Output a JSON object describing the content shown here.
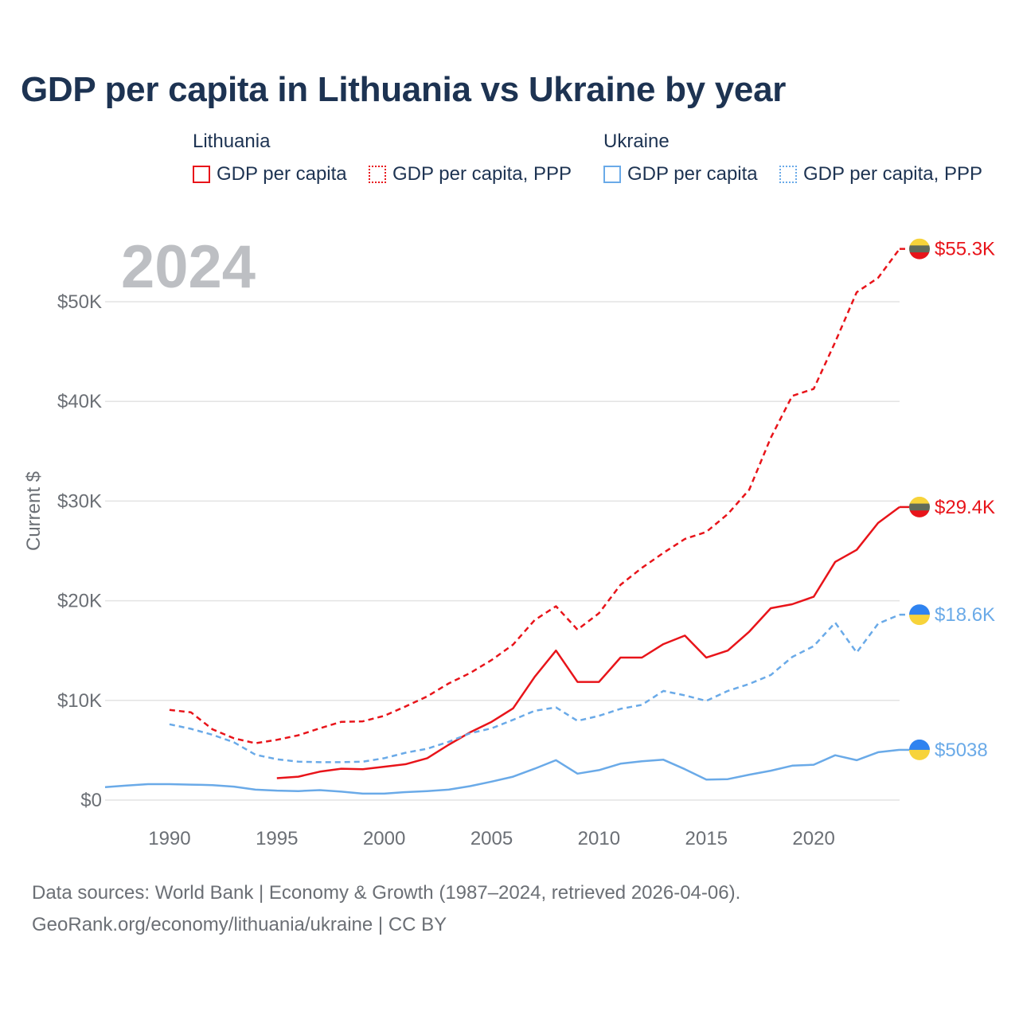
{
  "title": "GDP per capita in Lithuania vs Ukraine by year",
  "year_overlay": "2024",
  "legend": {
    "lithuania": {
      "title": "Lithuania",
      "gdp_label": "GDP per capita",
      "ppp_label": "GDP per capita, PPP"
    },
    "ukraine": {
      "title": "Ukraine",
      "gdp_label": "GDP per capita",
      "ppp_label": "GDP per capita, PPP"
    }
  },
  "footer": {
    "line1": "Data sources: World Bank | Economy & Growth (1987–2024, retrieved 2026-04-06).",
    "line2": "GeoRank.org/economy/lithuania/ukraine | CC BY"
  },
  "colors": {
    "lithuania": "#e8141a",
    "ukraine": "#6aaae8",
    "grid": "#e3e3e3",
    "axis_text": "#6b6f75",
    "title": "#1d3352",
    "flag_lt_yellow": "#f7d33a",
    "flag_lt_green": "#616b5a",
    "flag_lt_red": "#e8141a",
    "flag_ua_blue": "#2f83f0",
    "flag_ua_yellow": "#f7d33a"
  },
  "chart_data": {
    "type": "line",
    "title": "GDP per capita in Lithuania vs Ukraine by year",
    "xlabel": "",
    "ylabel": "Current $",
    "xlim": [
      1987,
      2024
    ],
    "ylim": [
      0,
      55300
    ],
    "x_ticks": [
      1990,
      1995,
      2000,
      2005,
      2010,
      2015,
      2020
    ],
    "y_ticks": [
      0,
      10000,
      20000,
      30000,
      40000,
      50000
    ],
    "y_tick_labels": [
      "$0",
      "$10K",
      "$20K",
      "$30K",
      "$40K",
      "$50K"
    ],
    "grid": true,
    "series": [
      {
        "name": "Lithuania GDP per capita",
        "country": "lithuania",
        "style": "solid",
        "end_label": "$29.4K",
        "points": [
          [
            1995,
            2200
          ],
          [
            1996,
            2350
          ],
          [
            1997,
            2850
          ],
          [
            1998,
            3150
          ],
          [
            1999,
            3100
          ],
          [
            2000,
            3350
          ],
          [
            2001,
            3600
          ],
          [
            2002,
            4200
          ],
          [
            2003,
            5550
          ],
          [
            2004,
            6800
          ],
          [
            2005,
            7850
          ],
          [
            2006,
            9200
          ],
          [
            2007,
            12350
          ],
          [
            2008,
            15000
          ],
          [
            2009,
            11850
          ],
          [
            2010,
            11850
          ],
          [
            2011,
            14300
          ],
          [
            2012,
            14300
          ],
          [
            2013,
            15650
          ],
          [
            2014,
            16500
          ],
          [
            2015,
            14300
          ],
          [
            2016,
            15000
          ],
          [
            2017,
            16900
          ],
          [
            2018,
            19250
          ],
          [
            2019,
            19650
          ],
          [
            2020,
            20400
          ],
          [
            2021,
            23900
          ],
          [
            2022,
            25100
          ],
          [
            2023,
            27800
          ],
          [
            2024,
            29400
          ]
        ]
      },
      {
        "name": "Lithuania GDP per capita, PPP",
        "country": "lithuania",
        "style": "dashed",
        "end_label": "$55.3K",
        "points": [
          [
            1990,
            9050
          ],
          [
            1991,
            8800
          ],
          [
            1992,
            7100
          ],
          [
            1993,
            6200
          ],
          [
            1994,
            5700
          ],
          [
            1995,
            6050
          ],
          [
            1996,
            6500
          ],
          [
            1997,
            7200
          ],
          [
            1998,
            7850
          ],
          [
            1999,
            7900
          ],
          [
            2000,
            8450
          ],
          [
            2001,
            9400
          ],
          [
            2002,
            10400
          ],
          [
            2003,
            11700
          ],
          [
            2004,
            12750
          ],
          [
            2005,
            14050
          ],
          [
            2006,
            15600
          ],
          [
            2007,
            18050
          ],
          [
            2008,
            19450
          ],
          [
            2009,
            17100
          ],
          [
            2010,
            18750
          ],
          [
            2011,
            21600
          ],
          [
            2012,
            23300
          ],
          [
            2013,
            24800
          ],
          [
            2014,
            26200
          ],
          [
            2015,
            26900
          ],
          [
            2016,
            28700
          ],
          [
            2017,
            31150
          ],
          [
            2018,
            36350
          ],
          [
            2019,
            40550
          ],
          [
            2020,
            41250
          ],
          [
            2021,
            45950
          ],
          [
            2022,
            50950
          ],
          [
            2023,
            52400
          ],
          [
            2024,
            55300
          ]
        ]
      },
      {
        "name": "Ukraine GDP per capita",
        "country": "ukraine",
        "style": "solid",
        "end_label": "$5038",
        "points": [
          [
            1987,
            1300
          ],
          [
            1988,
            1450
          ],
          [
            1989,
            1600
          ],
          [
            1990,
            1600
          ],
          [
            1991,
            1550
          ],
          [
            1992,
            1500
          ],
          [
            1993,
            1350
          ],
          [
            1994,
            1050
          ],
          [
            1995,
            950
          ],
          [
            1996,
            900
          ],
          [
            1997,
            1000
          ],
          [
            1998,
            850
          ],
          [
            1999,
            650
          ],
          [
            2000,
            650
          ],
          [
            2001,
            800
          ],
          [
            2002,
            900
          ],
          [
            2003,
            1050
          ],
          [
            2004,
            1400
          ],
          [
            2005,
            1850
          ],
          [
            2006,
            2350
          ],
          [
            2007,
            3150
          ],
          [
            2008,
            4000
          ],
          [
            2009,
            2650
          ],
          [
            2010,
            3000
          ],
          [
            2011,
            3650
          ],
          [
            2012,
            3900
          ],
          [
            2013,
            4050
          ],
          [
            2014,
            3100
          ],
          [
            2015,
            2050
          ],
          [
            2016,
            2100
          ],
          [
            2017,
            2550
          ],
          [
            2018,
            2950
          ],
          [
            2019,
            3450
          ],
          [
            2020,
            3550
          ],
          [
            2021,
            4500
          ],
          [
            2022,
            4000
          ],
          [
            2023,
            4800
          ],
          [
            2024,
            5038
          ]
        ]
      },
      {
        "name": "Ukraine GDP per capita, PPP",
        "country": "ukraine",
        "style": "dashed",
        "end_label": "$18.6K",
        "points": [
          [
            1990,
            7600
          ],
          [
            1991,
            7150
          ],
          [
            1992,
            6550
          ],
          [
            1993,
            5800
          ],
          [
            1994,
            4550
          ],
          [
            1995,
            4100
          ],
          [
            1996,
            3850
          ],
          [
            1997,
            3800
          ],
          [
            1998,
            3800
          ],
          [
            1999,
            3850
          ],
          [
            2000,
            4200
          ],
          [
            2001,
            4750
          ],
          [
            2002,
            5150
          ],
          [
            2003,
            5850
          ],
          [
            2004,
            6700
          ],
          [
            2005,
            7200
          ],
          [
            2006,
            8050
          ],
          [
            2007,
            8950
          ],
          [
            2008,
            9300
          ],
          [
            2009,
            7950
          ],
          [
            2010,
            8450
          ],
          [
            2011,
            9150
          ],
          [
            2012,
            9550
          ],
          [
            2013,
            10950
          ],
          [
            2014,
            10500
          ],
          [
            2015,
            9950
          ],
          [
            2016,
            10950
          ],
          [
            2017,
            11650
          ],
          [
            2018,
            12550
          ],
          [
            2019,
            14350
          ],
          [
            2020,
            15450
          ],
          [
            2021,
            17800
          ],
          [
            2022,
            14800
          ],
          [
            2023,
            17700
          ],
          [
            2024,
            18600
          ]
        ]
      }
    ]
  }
}
